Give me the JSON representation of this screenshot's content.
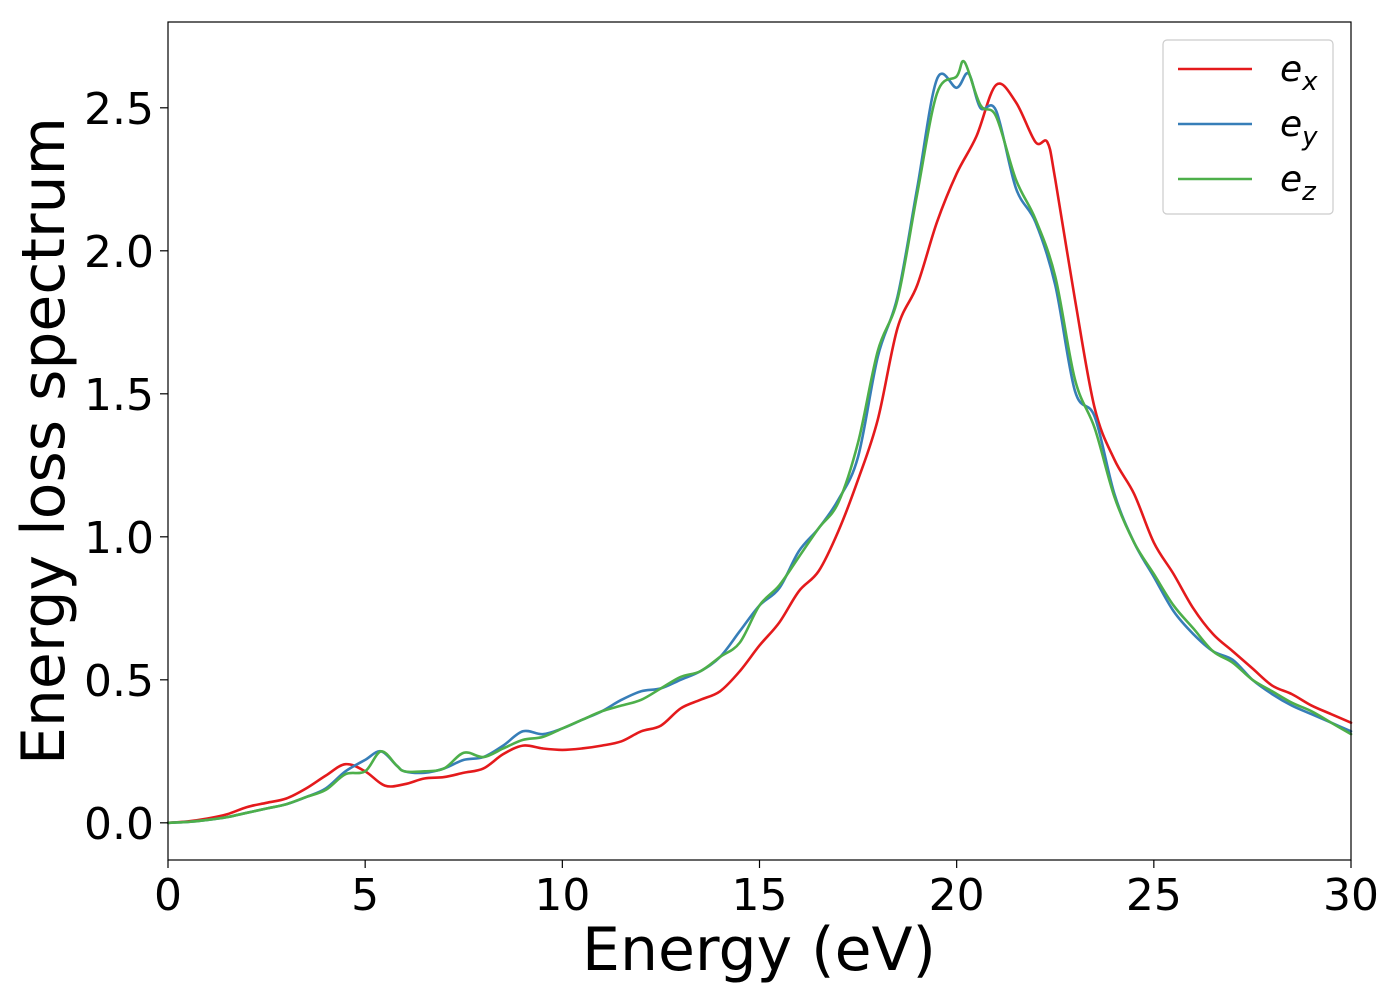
{
  "chart_data": {
    "type": "line",
    "xlabel": "Energy (eV)",
    "ylabel": "Energy loss spectrum",
    "xlim": [
      0,
      30
    ],
    "ylim": [
      -0.13,
      2.8
    ],
    "xticks": [
      0,
      5,
      10,
      15,
      20,
      25,
      30
    ],
    "xtick_labels": [
      "0",
      "5",
      "10",
      "15",
      "20",
      "25",
      "30"
    ],
    "yticks": [
      0.0,
      0.5,
      1.0,
      1.5,
      2.0,
      2.5
    ],
    "ytick_labels": [
      "0.0",
      "0.5",
      "1.0",
      "1.5",
      "2.0",
      "2.5"
    ],
    "grid": false,
    "legend_position": "top-right",
    "series": [
      {
        "name": "e_x",
        "label_base": "e",
        "label_sub": "x",
        "color": "#e41a1c",
        "x": [
          0,
          0.5,
          1,
          1.5,
          2,
          2.5,
          3,
          3.5,
          4,
          4.5,
          5,
          5.5,
          6,
          6.5,
          7,
          7.5,
          8,
          8.5,
          9,
          9.5,
          10,
          10.5,
          11,
          11.5,
          12,
          12.5,
          13,
          13.5,
          14,
          14.5,
          15,
          15.5,
          16,
          16.5,
          17,
          17.5,
          18,
          18.5,
          19,
          19.5,
          20,
          20.5,
          21,
          21.5,
          22,
          22.3,
          22.5,
          23,
          23.5,
          24,
          24.5,
          25,
          25.5,
          26,
          26.5,
          27,
          27.5,
          28,
          28.5,
          29,
          29.5,
          30
        ],
        "y": [
          0.0,
          0.005,
          0.015,
          0.03,
          0.055,
          0.07,
          0.085,
          0.12,
          0.165,
          0.205,
          0.18,
          0.13,
          0.135,
          0.155,
          0.16,
          0.175,
          0.19,
          0.24,
          0.27,
          0.26,
          0.255,
          0.26,
          0.27,
          0.285,
          0.32,
          0.34,
          0.4,
          0.43,
          0.46,
          0.53,
          0.62,
          0.7,
          0.81,
          0.88,
          1.02,
          1.2,
          1.41,
          1.73,
          1.88,
          2.1,
          2.27,
          2.4,
          2.58,
          2.52,
          2.38,
          2.38,
          2.25,
          1.83,
          1.45,
          1.27,
          1.15,
          0.98,
          0.87,
          0.75,
          0.66,
          0.6,
          0.54,
          0.48,
          0.45,
          0.41,
          0.38,
          0.35
        ]
      },
      {
        "name": "e_y",
        "label_base": "e",
        "label_sub": "y",
        "color": "#377eb8",
        "x": [
          0,
          0.5,
          1,
          1.5,
          2,
          2.5,
          3,
          3.5,
          4,
          4.5,
          5,
          5.4,
          5.8,
          6,
          6.5,
          7,
          7.5,
          8,
          8.5,
          9,
          9.5,
          10,
          10.5,
          11,
          11.5,
          12,
          12.5,
          13,
          13.5,
          14,
          14.5,
          15,
          15.5,
          16,
          16.5,
          17,
          17.5,
          18,
          18.5,
          19,
          19.5,
          20,
          20.3,
          20.6,
          21,
          21.5,
          22,
          22.5,
          23,
          23.5,
          24,
          24.5,
          25,
          25.5,
          26,
          26.5,
          27,
          27.5,
          28,
          28.5,
          29,
          29.5,
          30
        ],
        "y": [
          0.0,
          0.003,
          0.01,
          0.02,
          0.035,
          0.05,
          0.065,
          0.09,
          0.12,
          0.18,
          0.22,
          0.25,
          0.2,
          0.18,
          0.175,
          0.19,
          0.22,
          0.23,
          0.27,
          0.32,
          0.31,
          0.33,
          0.36,
          0.39,
          0.43,
          0.46,
          0.47,
          0.5,
          0.53,
          0.58,
          0.67,
          0.76,
          0.82,
          0.95,
          1.03,
          1.13,
          1.28,
          1.63,
          1.84,
          2.22,
          2.6,
          2.57,
          2.62,
          2.5,
          2.49,
          2.22,
          2.1,
          1.88,
          1.51,
          1.42,
          1.15,
          0.98,
          0.86,
          0.74,
          0.66,
          0.6,
          0.57,
          0.5,
          0.45,
          0.41,
          0.38,
          0.35,
          0.32
        ]
      },
      {
        "name": "e_z",
        "label_base": "e",
        "label_sub": "z",
        "color": "#4daf4a",
        "x": [
          0,
          0.5,
          1,
          1.5,
          2,
          2.5,
          3,
          3.5,
          4,
          4.5,
          5,
          5.4,
          5.8,
          6,
          6.5,
          7,
          7.5,
          8,
          8.5,
          9,
          9.5,
          10,
          10.5,
          11,
          11.5,
          12,
          12.5,
          13,
          13.5,
          14,
          14.5,
          15,
          15.5,
          16,
          16.5,
          17,
          17.5,
          18,
          18.5,
          19,
          19.5,
          20,
          20.2,
          20.6,
          21,
          21.5,
          22,
          22.5,
          23,
          23.5,
          24,
          24.5,
          25,
          25.5,
          26,
          26.5,
          27,
          27.5,
          28,
          28.5,
          29,
          29.5,
          30
        ],
        "y": [
          0.0,
          0.003,
          0.01,
          0.02,
          0.035,
          0.05,
          0.065,
          0.09,
          0.115,
          0.17,
          0.18,
          0.25,
          0.2,
          0.18,
          0.18,
          0.19,
          0.245,
          0.23,
          0.26,
          0.29,
          0.3,
          0.33,
          0.36,
          0.39,
          0.41,
          0.43,
          0.47,
          0.51,
          0.53,
          0.58,
          0.63,
          0.76,
          0.83,
          0.93,
          1.03,
          1.12,
          1.33,
          1.65,
          1.83,
          2.2,
          2.55,
          2.61,
          2.66,
          2.51,
          2.47,
          2.25,
          2.11,
          1.91,
          1.55,
          1.38,
          1.14,
          0.98,
          0.87,
          0.76,
          0.68,
          0.6,
          0.56,
          0.5,
          0.46,
          0.42,
          0.39,
          0.35,
          0.31
        ]
      }
    ]
  }
}
